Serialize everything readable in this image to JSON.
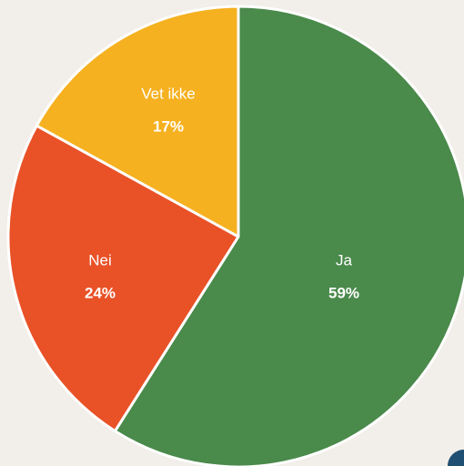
{
  "chart_data": {
    "type": "pie",
    "categories": [
      "Ja",
      "Nei",
      "Vet ikke"
    ],
    "values": [
      59,
      24,
      17
    ],
    "value_labels": [
      "59%",
      "24%",
      "17%"
    ],
    "colors": [
      "#4a8a4b",
      "#e95127",
      "#f5b120"
    ]
  }
}
